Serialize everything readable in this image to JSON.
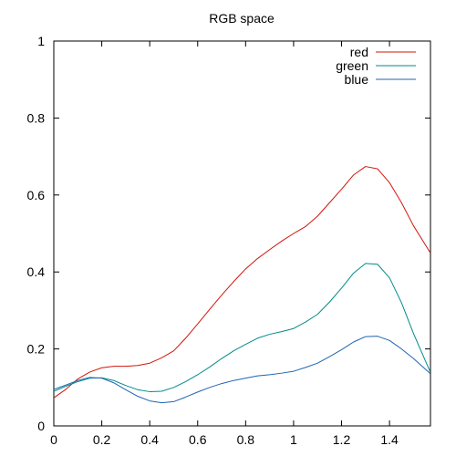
{
  "chart_data": {
    "type": "line",
    "title": "RGB space",
    "xlabel": "",
    "ylabel": "",
    "xlim": [
      0,
      1.5708
    ],
    "ylim": [
      0,
      1
    ],
    "xticks": [
      "0",
      "0.2",
      "0.4",
      "0.6",
      "0.8",
      "1",
      "1.2",
      "1.4"
    ],
    "yticks": [
      "0",
      "0.2",
      "0.4",
      "0.6",
      "0.8",
      "1"
    ],
    "legend_position": "top-right",
    "grid": false,
    "series": [
      {
        "name": "red",
        "color": "#d2140a",
        "x": [
          0,
          0.05,
          0.1,
          0.15,
          0.2,
          0.25,
          0.3,
          0.35,
          0.4,
          0.45,
          0.5,
          0.55,
          0.6,
          0.65,
          0.7,
          0.75,
          0.8,
          0.85,
          0.9,
          0.95,
          1.0,
          1.05,
          1.1,
          1.15,
          1.2,
          1.25,
          1.3,
          1.35,
          1.4,
          1.45,
          1.5,
          1.57
        ],
        "y": [
          0.073,
          0.095,
          0.122,
          0.14,
          0.151,
          0.155,
          0.155,
          0.157,
          0.163,
          0.177,
          0.195,
          0.228,
          0.265,
          0.303,
          0.34,
          0.375,
          0.408,
          0.435,
          0.458,
          0.48,
          0.5,
          0.518,
          0.545,
          0.58,
          0.615,
          0.652,
          0.674,
          0.668,
          0.632,
          0.58,
          0.52,
          0.45
        ]
      },
      {
        "name": "green",
        "color": "#008b8b",
        "x": [
          0,
          0.05,
          0.1,
          0.15,
          0.2,
          0.25,
          0.3,
          0.35,
          0.4,
          0.45,
          0.5,
          0.55,
          0.6,
          0.65,
          0.7,
          0.75,
          0.8,
          0.85,
          0.9,
          0.95,
          1.0,
          1.05,
          1.1,
          1.15,
          1.2,
          1.25,
          1.3,
          1.35,
          1.4,
          1.45,
          1.5,
          1.57
        ],
        "y": [
          0.09,
          0.103,
          0.115,
          0.124,
          0.125,
          0.118,
          0.105,
          0.094,
          0.089,
          0.09,
          0.1,
          0.115,
          0.133,
          0.153,
          0.175,
          0.195,
          0.212,
          0.228,
          0.238,
          0.245,
          0.253,
          0.27,
          0.29,
          0.322,
          0.358,
          0.397,
          0.422,
          0.42,
          0.385,
          0.32,
          0.24,
          0.14
        ]
      },
      {
        "name": "blue",
        "color": "#1e64b4",
        "x": [
          0,
          0.05,
          0.1,
          0.15,
          0.2,
          0.25,
          0.3,
          0.35,
          0.4,
          0.45,
          0.5,
          0.55,
          0.6,
          0.65,
          0.7,
          0.75,
          0.8,
          0.85,
          0.9,
          0.95,
          1.0,
          1.05,
          1.1,
          1.15,
          1.2,
          1.25,
          1.3,
          1.35,
          1.4,
          1.45,
          1.5,
          1.57
        ],
        "y": [
          0.095,
          0.106,
          0.118,
          0.126,
          0.124,
          0.112,
          0.094,
          0.077,
          0.065,
          0.06,
          0.063,
          0.075,
          0.088,
          0.1,
          0.11,
          0.118,
          0.124,
          0.13,
          0.133,
          0.137,
          0.142,
          0.152,
          0.163,
          0.18,
          0.198,
          0.218,
          0.232,
          0.233,
          0.222,
          0.2,
          0.175,
          0.136
        ]
      }
    ]
  }
}
